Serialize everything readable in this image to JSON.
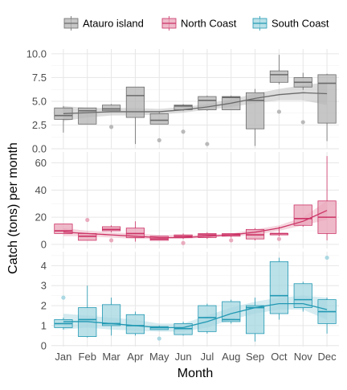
{
  "chart_data": {
    "type": "box",
    "title": "",
    "xlabel": "Month",
    "ylabel": "Catch (tons) per month",
    "categories": [
      "Jan",
      "Feb",
      "Mar",
      "Apr",
      "May",
      "Jun",
      "Jul",
      "Aug",
      "Sep",
      "Oct",
      "Nov",
      "Dec"
    ],
    "legend": {
      "placement": "top",
      "entries": [
        "Atauro island",
        "North Coast",
        "South Coast"
      ]
    },
    "grid": true,
    "smooth_trend": true,
    "panels": [
      {
        "name": "Atauro island",
        "color": "#6b6b6b",
        "fill": "#b3b3b3",
        "ylim": [
          0,
          10.5
        ],
        "yticks": [
          0,
          2.5,
          5,
          7.5,
          10
        ],
        "ytick_labels": [
          "0.0",
          "2.5",
          "5.0",
          "7.5",
          "10.0"
        ],
        "boxes": [
          {
            "q1": 3.1,
            "median": 3.5,
            "q3": 4.3,
            "wlow": 1.7,
            "whigh": 4.5,
            "outliers": []
          },
          {
            "q1": 2.6,
            "median": 4.0,
            "q3": 4.3,
            "wlow": 2.6,
            "whigh": 4.3,
            "outliers": []
          },
          {
            "q1": 4.0,
            "median": 4.2,
            "q3": 4.6,
            "wlow": 4.0,
            "whigh": 4.7,
            "outliers": [
              2.3
            ]
          },
          {
            "q1": 3.3,
            "median": 5.6,
            "q3": 6.5,
            "wlow": 0.5,
            "whigh": 6.5,
            "outliers": []
          },
          {
            "q1": 2.6,
            "median": 3.0,
            "q3": 3.7,
            "wlow": 2.6,
            "whigh": 3.9,
            "outliers": [
              0.9
            ]
          },
          {
            "q1": 4.1,
            "median": 4.5,
            "q3": 4.6,
            "wlow": 4.0,
            "whigh": 4.7,
            "outliers": [
              1.8
            ]
          },
          {
            "q1": 4.1,
            "median": 5.1,
            "q3": 5.5,
            "wlow": 4.0,
            "whigh": 5.6,
            "outliers": [
              0.5
            ]
          },
          {
            "q1": 4.1,
            "median": 5.4,
            "q3": 5.5,
            "wlow": 4.1,
            "whigh": 5.6,
            "outliers": []
          },
          {
            "q1": 2.1,
            "median": 5.1,
            "q3": 5.9,
            "wlow": 0.3,
            "whigh": 6.3,
            "outliers": []
          },
          {
            "q1": 7.0,
            "median": 7.8,
            "q3": 8.2,
            "wlow": 6.8,
            "whigh": 9.9,
            "outliers": [
              3.9
            ]
          },
          {
            "q1": 6.5,
            "median": 7.0,
            "q3": 7.5,
            "wlow": 6.2,
            "whigh": 8.0,
            "outliers": [
              2.8
            ]
          },
          {
            "q1": 2.7,
            "median": 6.9,
            "q3": 7.8,
            "wlow": 0.8,
            "whigh": 7.9,
            "outliers": []
          }
        ],
        "trend": [
          3.7,
          3.8,
          3.9,
          3.9,
          3.9,
          4.1,
          4.4,
          4.8,
          5.3,
          5.7,
          5.9,
          5.8
        ],
        "band_low": [
          2.9,
          3.3,
          3.5,
          3.5,
          3.6,
          3.8,
          4.1,
          4.4,
          4.8,
          5.1,
          5.1,
          4.6
        ],
        "band_high": [
          4.5,
          4.3,
          4.3,
          4.3,
          4.2,
          4.4,
          4.7,
          5.2,
          5.8,
          6.3,
          6.7,
          7.0
        ]
      },
      {
        "name": "North Coast",
        "color": "#cc3366",
        "fill": "#e8a3b8",
        "ylim": [
          -3,
          68
        ],
        "yticks": [
          0,
          20,
          40,
          60
        ],
        "ytick_labels": [
          "0",
          "20",
          "40",
          "60"
        ],
        "boxes": [
          {
            "q1": 8,
            "median": 10,
            "q3": 15,
            "wlow": 8,
            "whigh": 15,
            "outliers": []
          },
          {
            "q1": 3,
            "median": 6,
            "q3": 8,
            "wlow": 3,
            "whigh": 8,
            "outliers": [
              18
            ]
          },
          {
            "q1": 10,
            "median": 11,
            "q3": 13,
            "wlow": 9,
            "whigh": 14,
            "outliers": [
              3
            ]
          },
          {
            "q1": 5,
            "median": 8,
            "q3": 12,
            "wlow": 2,
            "whigh": 17,
            "outliers": []
          },
          {
            "q1": 3,
            "median": 4,
            "q3": 6,
            "wlow": 3,
            "whigh": 6,
            "outliers": []
          },
          {
            "q1": 5,
            "median": 6,
            "q3": 7,
            "wlow": 4,
            "whigh": 8,
            "outliers": [
              1
            ]
          },
          {
            "q1": 5,
            "median": 7,
            "q3": 8,
            "wlow": 4,
            "whigh": 9,
            "outliers": []
          },
          {
            "q1": 6,
            "median": 7,
            "q3": 8,
            "wlow": 5,
            "whigh": 8,
            "outliers": [
              3
            ]
          },
          {
            "q1": 4,
            "median": 7,
            "q3": 11,
            "wlow": 3,
            "whigh": 12,
            "outliers": []
          },
          {
            "q1": 7,
            "median": 8,
            "q3": 8,
            "wlow": 6,
            "whigh": 13,
            "outliers": [
              4
            ]
          },
          {
            "q1": 14,
            "median": 19,
            "q3": 29,
            "wlow": 13,
            "whigh": 29,
            "outliers": []
          },
          {
            "q1": 8,
            "median": 20,
            "q3": 32,
            "wlow": 3,
            "whigh": 65,
            "outliers": []
          }
        ],
        "trend": [
          9,
          8,
          7,
          6,
          5,
          5,
          6,
          7,
          9,
          12,
          17,
          25
        ],
        "band_low": [
          6,
          6,
          5,
          4,
          4,
          4,
          5,
          6,
          7,
          10,
          14,
          18
        ],
        "band_high": [
          12,
          10,
          9,
          8,
          7,
          7,
          7,
          8,
          11,
          14,
          20,
          32
        ]
      },
      {
        "name": "South Coast",
        "color": "#2299b3",
        "fill": "#a3d5e0",
        "ylim": [
          -0.05,
          4.7
        ],
        "yticks": [
          0,
          1,
          2,
          3,
          4
        ],
        "ytick_labels": [
          "0",
          "1",
          "2",
          "3",
          "4"
        ],
        "boxes": [
          {
            "q1": 0.9,
            "median": 1.1,
            "q3": 1.3,
            "wlow": 0.8,
            "whigh": 1.4,
            "outliers": [
              2.4
            ]
          },
          {
            "q1": 0.45,
            "median": 1.3,
            "q3": 1.9,
            "wlow": 0.4,
            "whigh": 3.0,
            "outliers": []
          },
          {
            "q1": 1.0,
            "median": 1.1,
            "q3": 2.05,
            "wlow": 0.5,
            "whigh": 2.4,
            "outliers": []
          },
          {
            "q1": 0.6,
            "median": 1.0,
            "q3": 1.55,
            "wlow": 0.5,
            "whigh": 1.7,
            "outliers": []
          },
          {
            "q1": 0.8,
            "median": 0.9,
            "q3": 0.95,
            "wlow": 0.8,
            "whigh": 1.0,
            "outliers": [
              0.35
            ]
          },
          {
            "q1": 0.55,
            "median": 0.85,
            "q3": 1.1,
            "wlow": 0.5,
            "whigh": 1.2,
            "outliers": []
          },
          {
            "q1": 0.7,
            "median": 1.4,
            "q3": 2.0,
            "wlow": 0.6,
            "whigh": 2.1,
            "outliers": []
          },
          {
            "q1": 1.2,
            "median": 1.3,
            "q3": 2.2,
            "wlow": 1.1,
            "whigh": 2.3,
            "outliers": []
          },
          {
            "q1": 0.6,
            "median": 1.9,
            "q3": 2.0,
            "wlow": 0.2,
            "whigh": 2.4,
            "outliers": []
          },
          {
            "q1": 1.6,
            "median": 2.5,
            "q3": 4.2,
            "wlow": 1.3,
            "whigh": 4.4,
            "outliers": []
          },
          {
            "q1": 1.9,
            "median": 2.3,
            "q3": 3.1,
            "wlow": 1.7,
            "whigh": 3.2,
            "outliers": []
          },
          {
            "q1": 1.1,
            "median": 1.7,
            "q3": 2.3,
            "wlow": 0.6,
            "whigh": 2.4,
            "outliers": [
              4.4
            ]
          }
        ],
        "trend": [
          1.2,
          1.2,
          1.1,
          1.0,
          0.9,
          0.9,
          1.2,
          1.6,
          1.9,
          2.1,
          2.1,
          1.8
        ],
        "band_low": [
          0.8,
          0.9,
          0.8,
          0.75,
          0.7,
          0.7,
          0.9,
          1.3,
          1.6,
          1.8,
          1.8,
          1.3
        ],
        "band_high": [
          1.6,
          1.5,
          1.4,
          1.3,
          1.1,
          1.1,
          1.5,
          1.9,
          2.2,
          2.4,
          2.5,
          2.4
        ]
      }
    ]
  }
}
